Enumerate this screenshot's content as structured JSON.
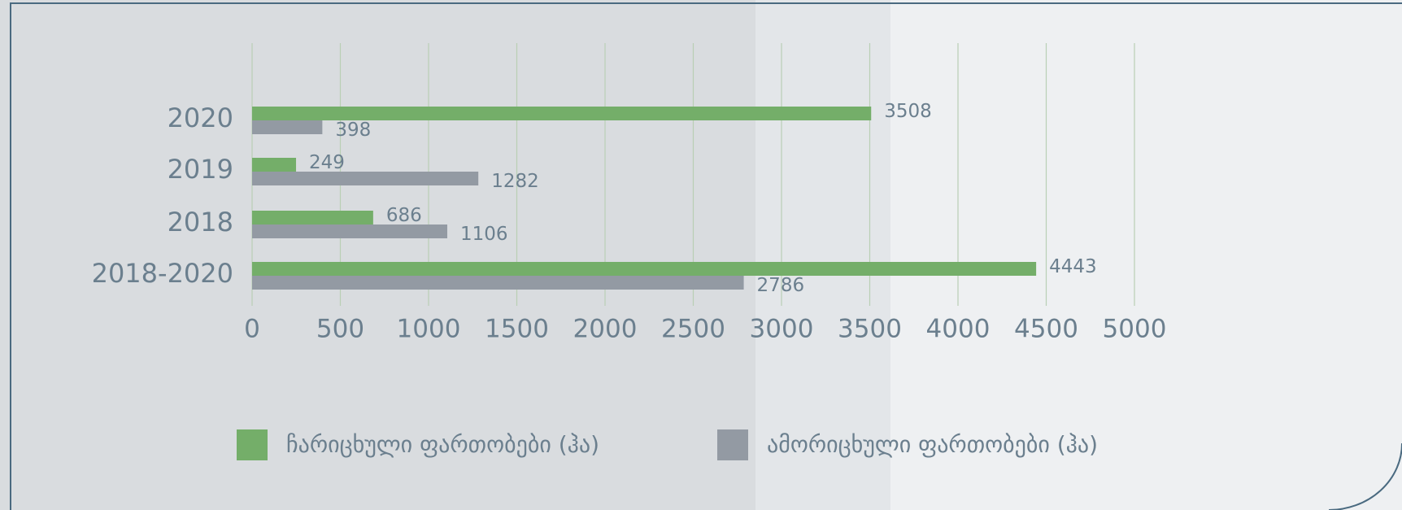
{
  "chart_data": {
    "type": "bar",
    "orientation": "horizontal",
    "categories": [
      "2020",
      "2019",
      "2018",
      "2018-2020"
    ],
    "series": [
      {
        "name": "ჩარიცხული ფართობები (ჰა)",
        "color": "#74ae69",
        "values": [
          3508,
          249,
          686,
          4443
        ]
      },
      {
        "name": "ამორიცხული ფართობები (ჰა)",
        "color": "#939aa3",
        "values": [
          398,
          1282,
          1106,
          2786
        ]
      }
    ],
    "xlim": [
      0,
      5000
    ],
    "xticks": [
      0,
      500,
      1000,
      1500,
      2000,
      2500,
      3000,
      3500,
      4000,
      4500,
      5000
    ],
    "grid": true,
    "legend": "bottom"
  }
}
